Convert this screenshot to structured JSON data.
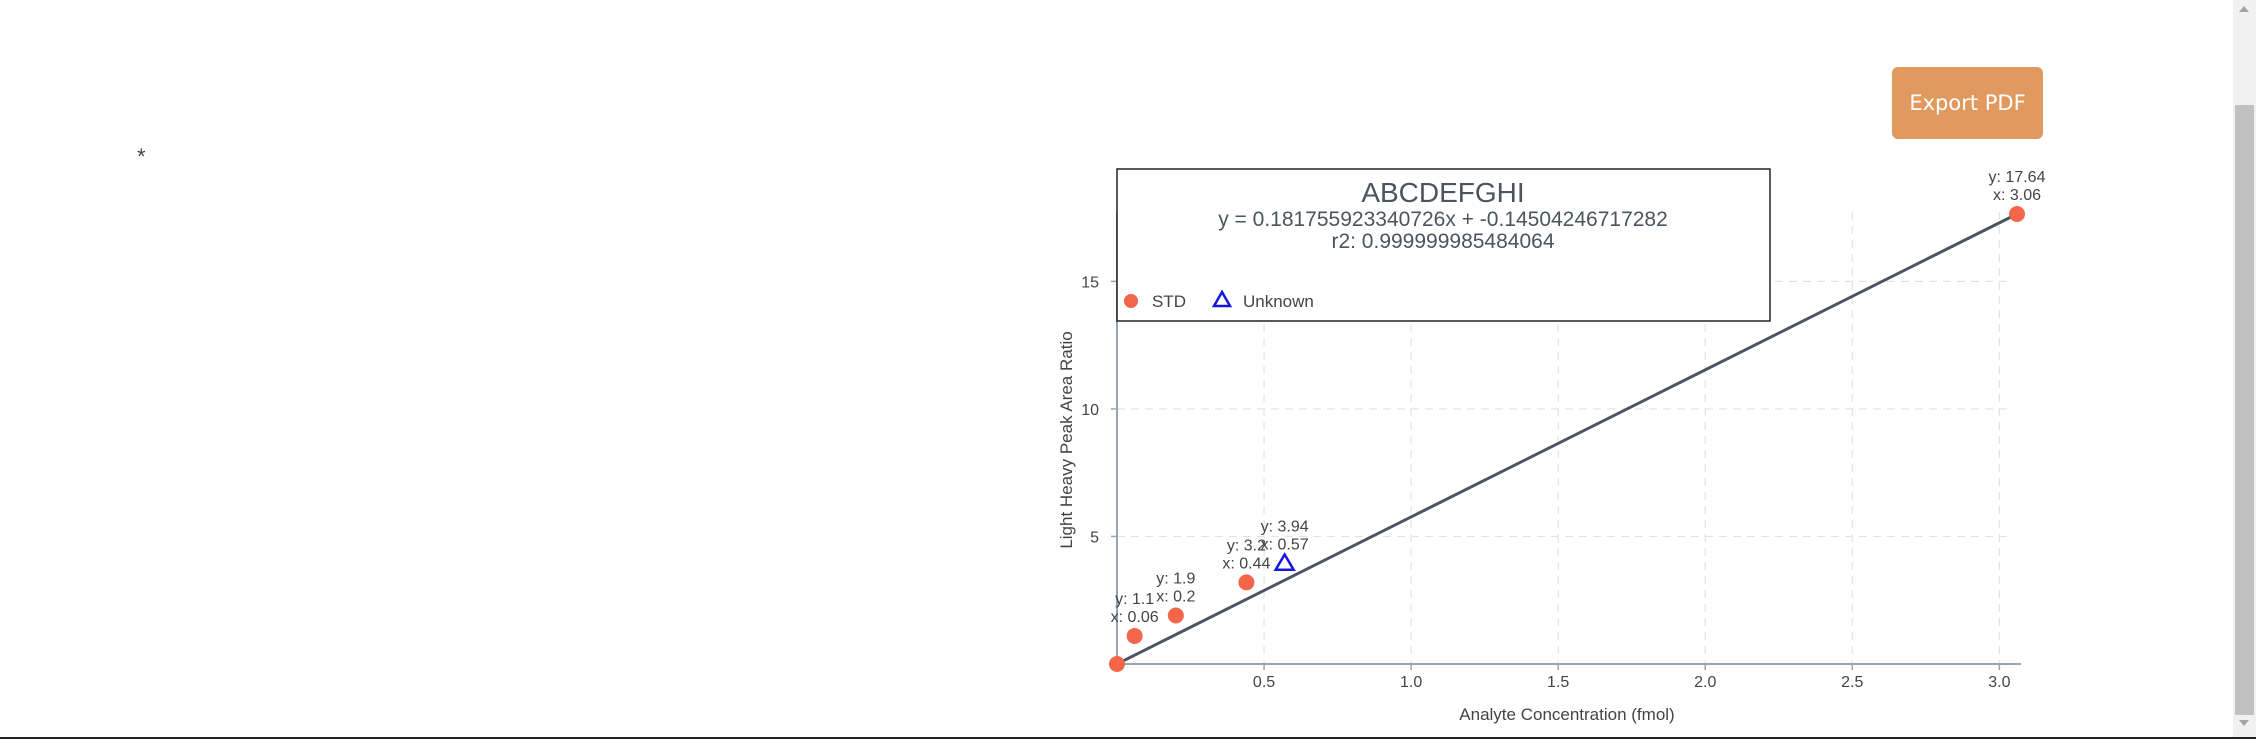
{
  "page": {
    "asterisk": "*",
    "export_label": "Export PDF",
    "accent_color": "#e09a60"
  },
  "chart_data": {
    "type": "scatter",
    "title": "ABCDEFGHI",
    "equation": "y = 0.181755923340726x + -0.14504246717282",
    "r2": "r2: 0.999999985484064",
    "xlabel": "Analyte Concentration (fmol)",
    "ylabel": "Light Heavy Peak Area Ratio",
    "xlim": [
      0,
      3.06
    ],
    "ylim": [
      0,
      17.64
    ],
    "x_ticks": [
      0.5,
      1.0,
      1.5,
      2.0,
      2.5,
      3.0
    ],
    "x_tick_labels": [
      "0.5",
      "1.0",
      "1.5",
      "2.0",
      "2.5",
      "3.0"
    ],
    "y_ticks": [
      5,
      10,
      15
    ],
    "y_tick_labels": [
      "5",
      "10",
      "15"
    ],
    "grid": true,
    "legend_position": "top-left",
    "series": [
      {
        "name": "STD",
        "marker": "circle",
        "color": "#f4664a",
        "points": [
          {
            "x": 0.0,
            "y": 0.0
          },
          {
            "x": 0.06,
            "y": 1.1,
            "label_y": "y: 1.1",
            "label_x": "x: 0.06"
          },
          {
            "x": 0.2,
            "y": 1.9,
            "label_y": "y: 1.9",
            "label_x": "x: 0.2"
          },
          {
            "x": 0.44,
            "y": 3.2,
            "label_y": "y: 3.2",
            "label_x": "x: 0.44"
          },
          {
            "x": 3.06,
            "y": 17.64,
            "label_y": "y: 17.64",
            "label_x": "x: 3.06"
          }
        ]
      },
      {
        "name": "Unknown",
        "marker": "triangle-open",
        "color": "#1515e0",
        "points": [
          {
            "x": 0.57,
            "y": 3.94,
            "label_y": "y: 3.94",
            "label_x": "x: 0.57"
          }
        ]
      }
    ],
    "fit_line": {
      "x": [
        0.0,
        3.06
      ],
      "y": [
        0.0,
        17.64
      ],
      "color": "#4a5560"
    }
  }
}
